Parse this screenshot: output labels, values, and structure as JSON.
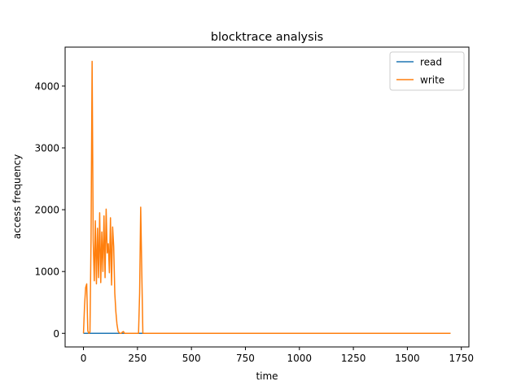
{
  "chart_data": {
    "type": "line",
    "title": "blocktrace analysis",
    "xlabel": "time",
    "ylabel": "access frequency",
    "xlim": [
      -85,
      1785
    ],
    "ylim": [
      -220,
      4630
    ],
    "xticks": [
      0,
      250,
      500,
      750,
      1000,
      1250,
      1500,
      1750
    ],
    "yticks": [
      0,
      1000,
      2000,
      3000,
      4000
    ],
    "grid": false,
    "legend_position": "upper right",
    "series": [
      {
        "name": "read",
        "color": "#1f77b4",
        "x": [
          0,
          280,
          1700
        ],
        "y": [
          0,
          0,
          0
        ]
      },
      {
        "name": "write",
        "color": "#ff7f0e",
        "x": [
          0,
          5,
          10,
          15,
          20,
          25,
          30,
          35,
          40,
          45,
          50,
          55,
          60,
          65,
          70,
          75,
          80,
          85,
          90,
          95,
          100,
          105,
          110,
          115,
          120,
          125,
          130,
          135,
          140,
          145,
          150,
          155,
          160,
          165,
          170,
          175,
          180,
          185,
          190,
          195,
          200,
          205,
          210,
          215,
          220,
          225,
          230,
          235,
          240,
          245,
          250,
          255,
          260,
          265,
          270,
          275,
          280,
          300,
          400,
          600,
          800,
          1000,
          1200,
          1400,
          1600,
          1700
        ],
        "y": [
          0,
          450,
          740,
          800,
          40,
          0,
          20,
          1500,
          4400,
          1500,
          850,
          1820,
          800,
          1700,
          900,
          1950,
          820,
          1640,
          1000,
          1900,
          900,
          2010,
          1300,
          1450,
          980,
          1870,
          780,
          1720,
          1400,
          650,
          350,
          150,
          40,
          10,
          0,
          0,
          20,
          30,
          0,
          0,
          0,
          0,
          0,
          0,
          0,
          0,
          0,
          0,
          0,
          0,
          0,
          0,
          650,
          2040,
          1000,
          0,
          0,
          0,
          0,
          0,
          0,
          0,
          0,
          0,
          0,
          0
        ]
      }
    ]
  }
}
